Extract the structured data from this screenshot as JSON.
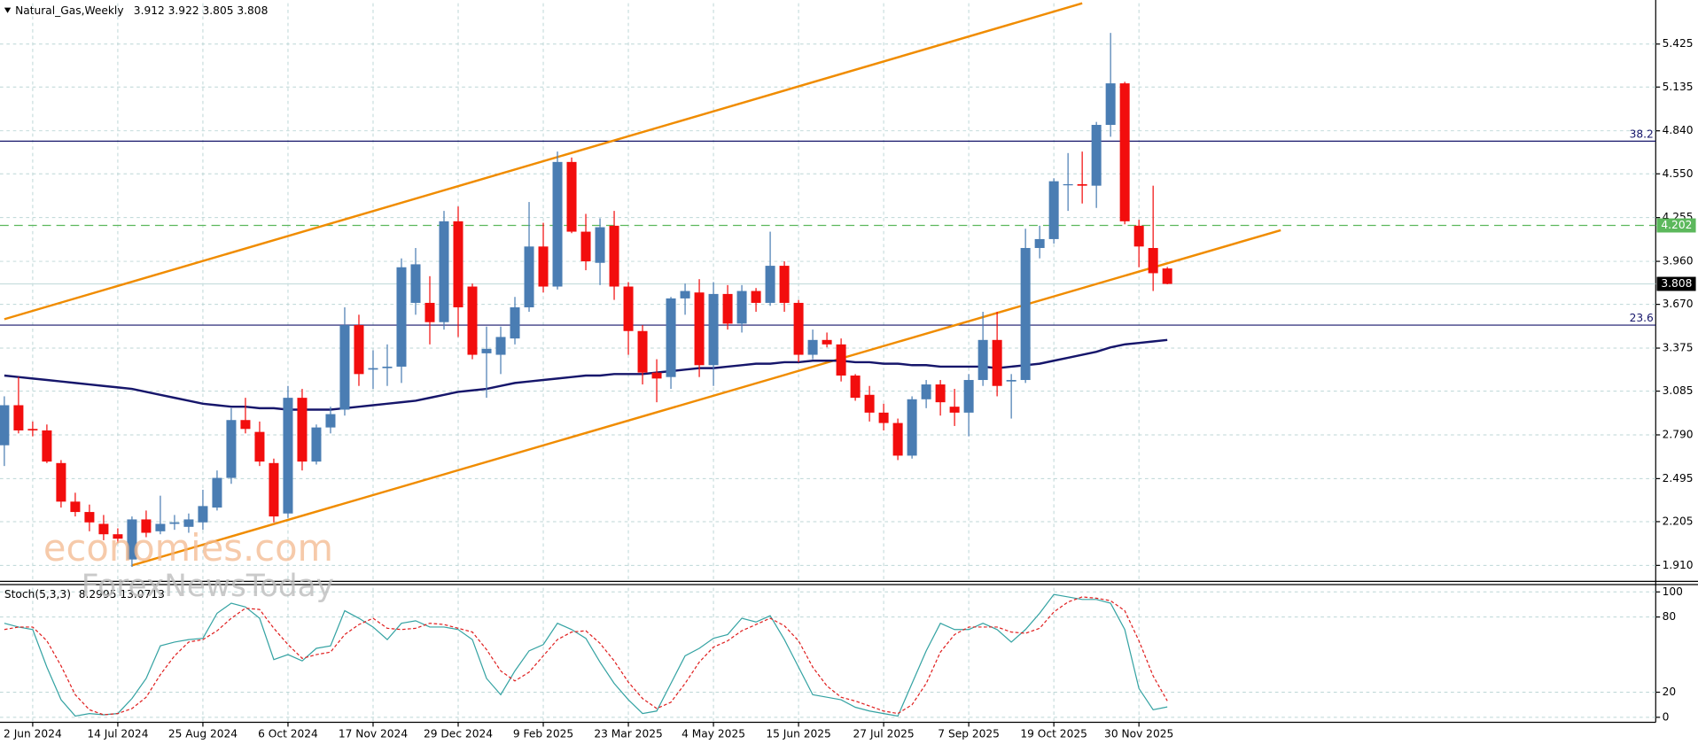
{
  "chart_data": {
    "type": "candlestick",
    "title": "Natural_Gas,Weekly",
    "categories": [
      null,
      null,
      "2 Jun 2024",
      null,
      null,
      null,
      null,
      null,
      "14 Jul 2024",
      null,
      null,
      null,
      null,
      null,
      "25 Aug 2024",
      null,
      null,
      null,
      null,
      null,
      "6 Oct 2024",
      null,
      null,
      null,
      null,
      null,
      "17 Nov 2024",
      null,
      null,
      null,
      null,
      null,
      "29 Dec 2024",
      null,
      null,
      null,
      null,
      null,
      "9 Feb 2025",
      null,
      null,
      null,
      null,
      null,
      "23 Mar 2025",
      null,
      null,
      null,
      null,
      null,
      "4 May 2025",
      null,
      null,
      null,
      null,
      null,
      "15 Jun 2025",
      null,
      null,
      null,
      null,
      null,
      "27 Jul 2025",
      null,
      null,
      null,
      null,
      null,
      "7 Sep 2025",
      null,
      null,
      null,
      null,
      null,
      "19 Oct 2025",
      null,
      null,
      null,
      null,
      null,
      "30 Nov 2025",
      null,
      null
    ],
    "open": [
      2.72,
      2.99,
      2.83,
      2.82,
      2.6,
      2.34,
      2.27,
      2.19,
      2.12,
      1.95,
      2.22,
      2.14,
      2.19,
      2.17,
      2.2,
      2.3,
      2.5,
      2.89,
      2.81,
      2.6,
      2.26,
      3.04,
      2.61,
      2.84,
      2.96,
      3.53,
      3.23,
      3.24,
      3.25,
      3.68,
      3.68,
      3.55,
      4.23,
      3.79,
      3.34,
      3.33,
      3.44,
      3.65,
      4.06,
      3.79,
      4.63,
      4.16,
      3.95,
      4.2,
      3.79,
      3.49,
      3.21,
      3.18,
      3.71,
      3.75,
      3.26,
      3.74,
      3.54,
      3.76,
      3.68,
      3.93,
      3.68,
      3.33,
      3.43,
      3.4,
      3.19,
      3.06,
      2.94,
      2.87,
      2.65,
      3.03,
      3.13,
      2.98,
      2.94,
      3.16,
      3.43,
      3.15,
      3.16,
      4.05,
      4.11,
      4.48,
      4.48,
      4.47,
      4.88,
      5.16,
      4.2,
      4.05,
      3.912
    ],
    "high": [
      3.05,
      3.18,
      2.88,
      2.86,
      2.62,
      2.4,
      2.32,
      2.25,
      2.16,
      2.24,
      2.28,
      2.38,
      2.25,
      2.26,
      2.42,
      2.55,
      2.97,
      3.04,
      2.88,
      2.63,
      3.12,
      3.1,
      2.86,
      2.98,
      3.65,
      3.6,
      3.36,
      3.4,
      3.98,
      4.05,
      3.86,
      4.3,
      4.33,
      3.81,
      3.52,
      3.52,
      3.72,
      4.36,
      4.22,
      4.7,
      4.66,
      4.28,
      4.25,
      4.3,
      3.82,
      3.53,
      3.3,
      3.72,
      3.81,
      3.84,
      3.82,
      3.8,
      3.8,
      3.78,
      4.16,
      3.96,
      3.7,
      3.5,
      3.48,
      3.44,
      3.2,
      3.12,
      3.0,
      2.9,
      3.05,
      3.16,
      3.16,
      3.1,
      3.2,
      3.62,
      3.62,
      3.2,
      4.18,
      4.2,
      4.52,
      4.69,
      4.7,
      4.9,
      5.5,
      5.17,
      4.24,
      4.47,
      3.922
    ],
    "low": [
      2.58,
      2.8,
      2.78,
      2.6,
      2.3,
      2.24,
      2.14,
      2.08,
      2.06,
      1.9,
      2.1,
      2.12,
      2.15,
      2.13,
      2.15,
      2.28,
      2.46,
      2.8,
      2.58,
      2.2,
      2.23,
      2.55,
      2.59,
      2.8,
      2.92,
      3.12,
      3.1,
      3.12,
      3.14,
      3.6,
      3.4,
      3.5,
      3.45,
      3.3,
      3.04,
      3.2,
      3.4,
      3.62,
      3.75,
      3.77,
      4.15,
      3.9,
      3.8,
      3.7,
      3.33,
      3.13,
      3.01,
      3.1,
      3.6,
      3.18,
      3.12,
      3.5,
      3.48,
      3.62,
      3.66,
      3.62,
      3.28,
      3.3,
      3.38,
      3.15,
      3.02,
      2.88,
      2.82,
      2.62,
      2.63,
      2.97,
      2.92,
      2.85,
      2.78,
      3.12,
      3.05,
      2.9,
      3.14,
      3.98,
      4.08,
      4.3,
      4.35,
      4.32,
      4.8,
      4.21,
      3.92,
      3.76,
      3.805
    ],
    "close": [
      2.99,
      2.82,
      2.82,
      2.61,
      2.34,
      2.27,
      2.2,
      2.12,
      2.09,
      2.22,
      2.13,
      2.19,
      2.2,
      2.22,
      2.31,
      2.5,
      2.89,
      2.83,
      2.61,
      2.24,
      3.04,
      2.61,
      2.84,
      2.93,
      3.53,
      3.2,
      3.24,
      3.25,
      3.92,
      3.94,
      3.55,
      4.23,
      3.65,
      3.33,
      3.37,
      3.45,
      3.65,
      4.06,
      3.79,
      4.63,
      4.16,
      3.96,
      4.19,
      3.79,
      3.49,
      3.21,
      3.17,
      3.71,
      3.76,
      3.26,
      3.74,
      3.54,
      3.76,
      3.68,
      3.93,
      3.68,
      3.33,
      3.43,
      3.4,
      3.19,
      3.04,
      2.94,
      2.87,
      2.65,
      3.03,
      3.13,
      3.01,
      2.94,
      3.16,
      3.43,
      3.12,
      3.16,
      4.05,
      4.11,
      4.5,
      4.48,
      4.47,
      4.88,
      5.16,
      4.23,
      4.06,
      3.88,
      3.808
    ],
    "up_color": "#4a7db3",
    "down_color": "#f20d0d",
    "moving_average": {
      "color": "#16166b",
      "values": [
        3.19,
        3.18,
        3.17,
        3.16,
        3.15,
        3.14,
        3.13,
        3.12,
        3.11,
        3.1,
        3.08,
        3.06,
        3.04,
        3.02,
        3.0,
        2.99,
        2.98,
        2.98,
        2.97,
        2.97,
        2.96,
        2.96,
        2.96,
        2.96,
        2.97,
        2.98,
        2.99,
        3.0,
        3.01,
        3.02,
        3.04,
        3.06,
        3.08,
        3.09,
        3.1,
        3.12,
        3.14,
        3.15,
        3.16,
        3.17,
        3.18,
        3.19,
        3.19,
        3.2,
        3.2,
        3.2,
        3.21,
        3.22,
        3.23,
        3.24,
        3.24,
        3.25,
        3.26,
        3.27,
        3.27,
        3.28,
        3.28,
        3.29,
        3.29,
        3.29,
        3.28,
        3.28,
        3.27,
        3.27,
        3.26,
        3.26,
        3.25,
        3.25,
        3.25,
        3.25,
        3.24,
        3.25,
        3.26,
        3.27,
        3.29,
        3.31,
        3.33,
        3.35,
        3.38,
        3.4,
        3.41,
        3.42,
        3.43
      ]
    },
    "trendlines": [
      {
        "color": "#f08c00",
        "x": [
          0,
          76
        ],
        "y": [
          3.57,
          5.7
        ]
      },
      {
        "color": "#f08c00",
        "x": [
          9,
          90
        ],
        "y": [
          1.91,
          4.17
        ]
      }
    ],
    "levels": [
      {
        "name": "38.2",
        "value": 4.77,
        "color": "#16166b"
      },
      {
        "name": "23.6",
        "value": 3.53,
        "color": "#16166b"
      }
    ],
    "dashed_level": {
      "value": 4.202,
      "color": "#5cb85c"
    },
    "ylim": [
      1.81,
      5.7
    ],
    "yticks": [
      {
        "value": 1.91,
        "label": "1.910"
      },
      2.205,
      2.495,
      {
        "value": 2.79,
        "label": "2.790"
      },
      3.085,
      3.375,
      {
        "value": 3.67,
        "label": "3.670"
      },
      {
        "value": 3.96,
        "label": "3.960"
      },
      4.255,
      {
        "value": 4.55,
        "label": "4.550"
      },
      {
        "value": 4.84,
        "label": "4.840"
      },
      5.135,
      5.425
    ],
    "grid": true,
    "stochastic": {
      "label": "Stoch(5,3,3)",
      "ylim": [
        -4,
        105
      ],
      "yticks": [
        0,
        20,
        80,
        100
      ],
      "k": {
        "color": "#35a3a3",
        "values": [
          75,
          72,
          70,
          40,
          14,
          1,
          3,
          2,
          3,
          15,
          31,
          57,
          60,
          62,
          63,
          83,
          91,
          88,
          79,
          46,
          50,
          45,
          55,
          57,
          85,
          79,
          72,
          62,
          75,
          77,
          72,
          72,
          70,
          62,
          31,
          18,
          37,
          53,
          58,
          75,
          70,
          63,
          44,
          27,
          14,
          3,
          5,
          27,
          49,
          55,
          63,
          66,
          79,
          76,
          81,
          62,
          40,
          18,
          16,
          14,
          8,
          5,
          3,
          1,
          27,
          53,
          75,
          70,
          70,
          75,
          70,
          60,
          70,
          83,
          98,
          96,
          94,
          94,
          91,
          70,
          23,
          6,
          8.2995
        ]
      },
      "d": {
        "color": "#e02020",
        "values": [
          70,
          72,
          72,
          61,
          41,
          18,
          6,
          2,
          3,
          7,
          16,
          34,
          49,
          60,
          62,
          69,
          79,
          87,
          86,
          71,
          58,
          47,
          50,
          52,
          66,
          74,
          79,
          71,
          70,
          71,
          75,
          74,
          71,
          68,
          54,
          37,
          29,
          36,
          49,
          62,
          68,
          69,
          59,
          45,
          28,
          15,
          7,
          12,
          27,
          44,
          56,
          61,
          69,
          74,
          79,
          73,
          61,
          40,
          25,
          16,
          13,
          9,
          5,
          3,
          10,
          27,
          52,
          66,
          72,
          72,
          72,
          68,
          67,
          71,
          84,
          92,
          96,
          95,
          93,
          85,
          61,
          33,
          13.0713
        ]
      }
    },
    "watermark": [
      "economies.com",
      "ForexNewsToday"
    ]
  }
}
